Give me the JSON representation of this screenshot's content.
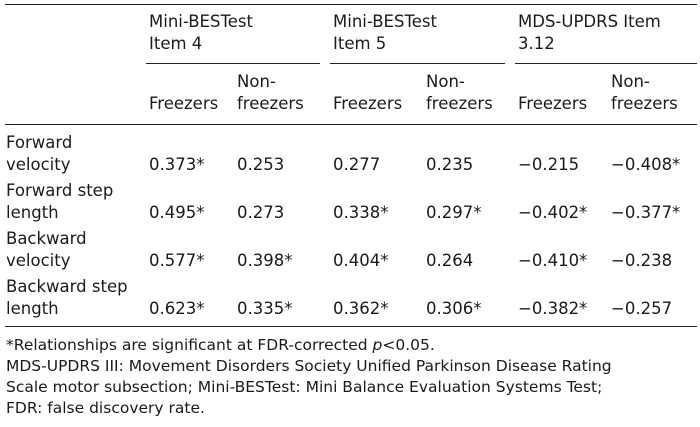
{
  "table": {
    "groups": [
      {
        "line1": "Mini-BESTest",
        "line2": "Item 4"
      },
      {
        "line1": "Mini-BESTest",
        "line2": "Item 5"
      },
      {
        "line1": "MDS-UPDRS Item",
        "line2": "3.12"
      }
    ],
    "subheaders": [
      {
        "line1": "",
        "line2": "Freezers"
      },
      {
        "line1": "Non-",
        "line2": "freezers"
      },
      {
        "line1": "",
        "line2": "Freezers"
      },
      {
        "line1": "Non-",
        "line2": "freezers"
      },
      {
        "line1": "",
        "line2": "Freezers"
      },
      {
        "line1": "Non-",
        "line2": "freezers"
      }
    ],
    "rows": [
      {
        "label1": "Forward",
        "label2": "velocity",
        "values": [
          "0.373*",
          "0.253",
          "0.277",
          "0.235",
          "−0.215",
          "−0.408*"
        ]
      },
      {
        "label1": "Forward step",
        "label2": "length",
        "values": [
          "0.495*",
          "0.273",
          "0.338*",
          "0.297*",
          "−0.402*",
          "−0.377*"
        ]
      },
      {
        "label1": "Backward",
        "label2": "velocity",
        "values": [
          "0.577*",
          "0.398*",
          "0.404*",
          "0.264",
          "−0.410*",
          "−0.238"
        ]
      },
      {
        "label1": "Backward step",
        "label2": "length",
        "values": [
          "0.623*",
          "0.335*",
          "0.362*",
          "0.306*",
          "−0.382*",
          "−0.257"
        ]
      }
    ]
  },
  "footnotes": {
    "sig_before": "*Relationships are significant at FDR-corrected ",
    "sig_p": "p",
    "sig_after": "<0.05.",
    "abbr_line1": "MDS-UPDRS III: Movement Disorders Society Unified Parkinson Disease Rating",
    "abbr_line2": "Scale motor subsection; Mini-BESTest: Mini Balance Evaluation Systems Test;",
    "abbr_line3": "FDR: false discovery rate."
  }
}
